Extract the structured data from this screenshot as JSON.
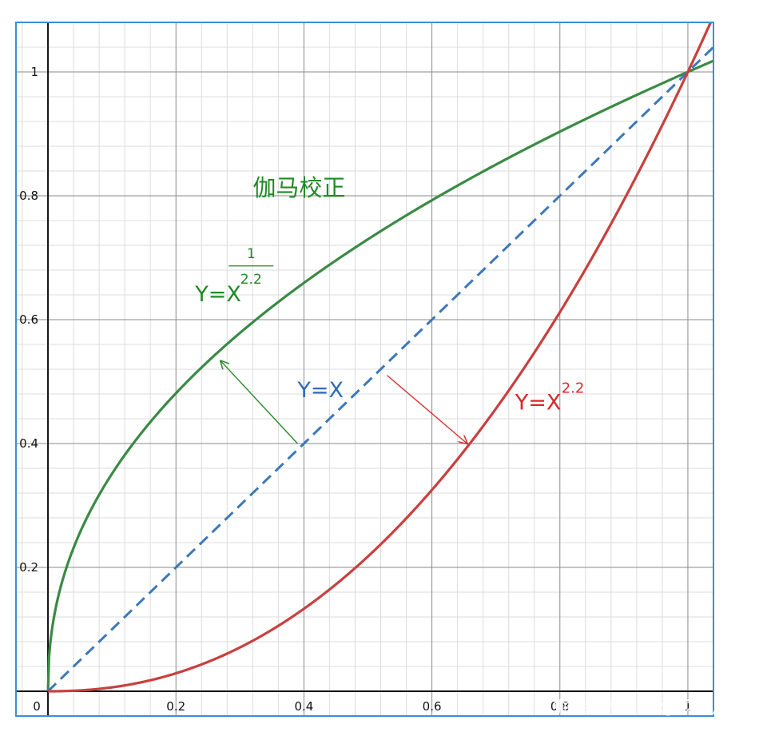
{
  "chart_data": {
    "type": "line",
    "xlim": [
      -0.05,
      1.04
    ],
    "ylim": [
      -0.04,
      1.08
    ],
    "grid": true,
    "grid_minor_step": 0.04,
    "grid_major_step": 0.2,
    "x_tick_values": [
      0,
      0.2,
      0.4,
      0.6,
      0.8,
      1
    ],
    "x_tick_labels": [
      "0",
      "0.2",
      "0.4",
      "0.6",
      "0.8",
      "1"
    ],
    "y_tick_values": [
      0.2,
      0.4,
      0.6,
      0.8,
      1
    ],
    "y_tick_labels": [
      "0.2",
      "0.4",
      "0.6",
      "0.8",
      "1"
    ],
    "series": [
      {
        "expression": "y = x^(1/2.2)",
        "exponent": 0.4545,
        "color": "#3a8a45",
        "dash": "solid"
      },
      {
        "expression": "y = x",
        "exponent": 1,
        "color": "#3d78b8",
        "dash": "dashed"
      },
      {
        "expression": "y = x^2.2",
        "exponent": 2.2,
        "color": "#c8403f",
        "dash": "solid"
      }
    ],
    "annotations": {
      "title": {
        "text": "伽马校正",
        "at": [
          0.32,
          0.8
        ],
        "color": "#1f8a25"
      },
      "green_label": {
        "text": "Y=X",
        "at": [
          0.23,
          0.63
        ],
        "color": "#1f8a25",
        "exp_numerator": "1",
        "exp_denominator": "2.2"
      },
      "blue_label": {
        "text": "Y=X",
        "at": [
          0.39,
          0.475
        ],
        "color": "#2f6db5"
      },
      "red_label": {
        "text": "Y=X",
        "at": [
          0.73,
          0.455
        ],
        "color": "#d8282a",
        "exponent": "2.2"
      },
      "arrows": [
        {
          "from": [
            0.39,
            0.4
          ],
          "to": [
            0.27,
            0.5333
          ],
          "color": "#2a8a2a"
        },
        {
          "from": [
            0.53,
            0.51
          ],
          "to": [
            0.655,
            0.4
          ],
          "color": "#d83030"
        }
      ]
    }
  },
  "colors": {
    "axes_frame": "#3a8fd6",
    "grid_minor": "#dcdcdc",
    "grid_major": "#8a8a8a",
    "axis": "#111111"
  },
  "watermark": "掘金技术社区 @ 乘风转舵"
}
